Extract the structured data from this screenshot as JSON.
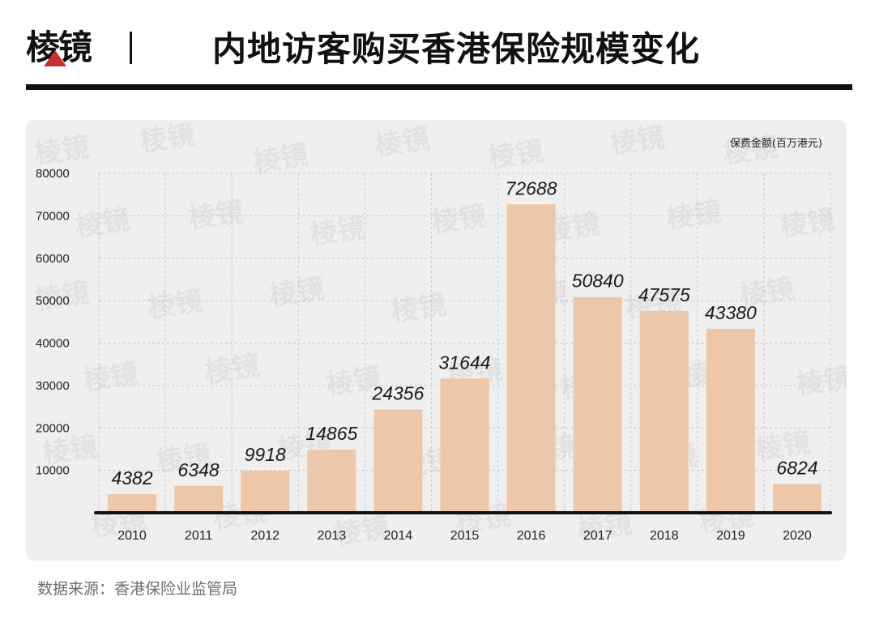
{
  "brand": {
    "name": "棱镜"
  },
  "title": "内地访客购买香港保险规模变化",
  "watermark_text": "棱镜",
  "source": "数据来源：香港保险业监管局",
  "colors": {
    "bar": "#edc7a8",
    "axis": "#111111",
    "grid": "#c8c8c8",
    "panel": "#f0efef"
  },
  "chart_data": {
    "type": "bar",
    "title": "内地访客购买香港保险规模变化",
    "ylabel": "保费金额(百万港元)",
    "xlabel": "",
    "categories": [
      "2010",
      "2011",
      "2012",
      "2013",
      "2014",
      "2015",
      "2016",
      "2017",
      "2018",
      "2019",
      "2020"
    ],
    "values": [
      4382,
      6348,
      9918,
      14865,
      24356,
      31644,
      72688,
      50840,
      47575,
      43380,
      6824
    ],
    "data_labels": [
      "4382",
      "6348",
      "9918",
      "14865",
      "24356",
      "31644",
      "72688",
      "50840",
      "47575",
      "43380",
      "6824"
    ],
    "ylim": [
      0,
      80000
    ],
    "yticks": [
      10000,
      20000,
      30000,
      40000,
      50000,
      60000,
      70000,
      80000
    ],
    "ytick_labels": [
      "10000",
      "20000",
      "30000",
      "40000",
      "50000",
      "60000",
      "70000",
      "80000"
    ],
    "grid": true,
    "legend": "none"
  }
}
